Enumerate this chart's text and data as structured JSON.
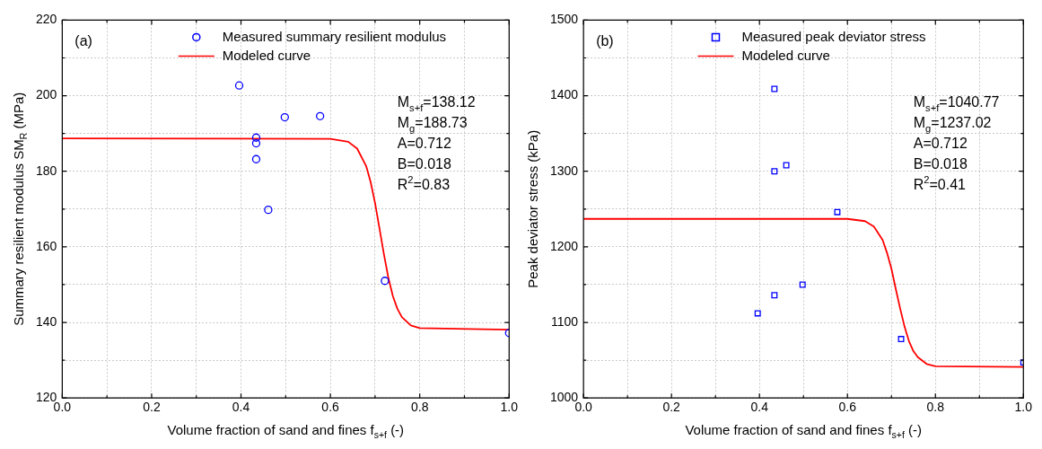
{
  "chart_data": [
    {
      "type": "scatter",
      "xlabel": "Volume fraction of sand and fines f$_{s+f}$ (-)",
      "ylabel": "Summary resilient modulus SM$_{R}$ (MPa)",
      "xlim": [
        0,
        1
      ],
      "ylim": [
        120,
        220
      ],
      "xticks": [
        {
          "value": 0,
          "label": "0.0"
        },
        {
          "value": 0.1,
          "label": null
        },
        0.2,
        {
          "value": 0.3,
          "label": null
        },
        0.4,
        {
          "value": 0.5,
          "label": null
        },
        0.6,
        {
          "value": 0.7,
          "label": null
        },
        0.8,
        {
          "value": 0.9,
          "label": null
        },
        {
          "value": 1,
          "label": "1.0"
        }
      ],
      "yticks": [
        120,
        {
          "value": 130,
          "label": null
        },
        140,
        {
          "value": 150,
          "label": null
        },
        160,
        {
          "value": 170,
          "label": null
        },
        180,
        {
          "value": 190,
          "label": null
        },
        200,
        {
          "value": 210,
          "label": null
        },
        220
      ],
      "grid": true,
      "legend": "top",
      "annotations": [
        "(a)",
        "M$_{s+f}$=138.12",
        "M$_{g}$=188.73",
        "A=0.712",
        "B=0.018",
        "R$^{2}$=0.83"
      ],
      "series": [
        {
          "name": "Measured summary resilient modulus",
          "type": "scatter",
          "marker": "circle",
          "color": "#0000ff",
          "x": [
            0.396,
            0.434,
            0.434,
            0.434,
            0.461,
            0.498,
            0.577,
            0.722,
            1.0
          ],
          "values": [
            202.7,
            188.9,
            187.4,
            183.2,
            169.8,
            194.3,
            194.6,
            151.0,
            137.2
          ]
        },
        {
          "name": "Modeled curve",
          "type": "line",
          "marker": "none",
          "color": "#ff0000",
          "x": [
            0,
            0.6,
            0.64,
            0.66,
            0.68,
            0.69,
            0.7,
            0.71,
            0.72,
            0.73,
            0.74,
            0.75,
            0.76,
            0.78,
            0.8,
            1.0
          ],
          "values": [
            188.7,
            188.6,
            187.8,
            186.0,
            181.4,
            177.2,
            171.6,
            164.8,
            157.9,
            151.7,
            146.9,
            143.6,
            141.4,
            139.2,
            138.5,
            138.1
          ]
        }
      ]
    },
    {
      "type": "scatter",
      "xlabel": "Volume fraction of sand and fines f$_{s+f}$ (-)",
      "ylabel": "Peak deviator stress (kPa)",
      "xlim": [
        0,
        1
      ],
      "ylim": [
        1000,
        1500
      ],
      "xticks": [
        {
          "value": 0,
          "label": "0.0"
        },
        {
          "value": 0.1,
          "label": null
        },
        0.2,
        {
          "value": 0.3,
          "label": null
        },
        0.4,
        {
          "value": 0.5,
          "label": null
        },
        0.6,
        {
          "value": 0.7,
          "label": null
        },
        0.8,
        {
          "value": 0.9,
          "label": null
        },
        {
          "value": 1,
          "label": "1.0"
        }
      ],
      "yticks": [
        1000,
        {
          "value": 1050,
          "label": null
        },
        1100,
        {
          "value": 1150,
          "label": null
        },
        1200,
        {
          "value": 1250,
          "label": null
        },
        1300,
        {
          "value": 1350,
          "label": null
        },
        1400,
        {
          "value": 1450,
          "label": null
        },
        1500
      ],
      "grid": true,
      "legend": "top",
      "annotations": [
        "(b)",
        "M$_{s+f}$=1040.77",
        "M$_{g}$=1237.02",
        "A=0.712",
        "B=0.018",
        "R$^{2}$=0.41"
      ],
      "series": [
        {
          "name": "Measured peak deviator stress",
          "type": "scatter",
          "marker": "square",
          "color": "#0000ff",
          "x": [
            0.396,
            0.434,
            0.434,
            0.434,
            0.461,
            0.498,
            0.577,
            0.722,
            1.0
          ],
          "values": [
            1112,
            1409,
            1300,
            1136,
            1308,
            1150,
            1246,
            1078,
            1047
          ]
        },
        {
          "name": "Modeled curve",
          "type": "line",
          "marker": "none",
          "color": "#ff0000",
          "x": [
            0,
            0.6,
            0.64,
            0.66,
            0.68,
            0.69,
            0.7,
            0.71,
            0.72,
            0.73,
            0.74,
            0.75,
            0.76,
            0.78,
            0.8,
            1.0
          ],
          "values": [
            1237,
            1237,
            1234,
            1227,
            1209,
            1192,
            1171,
            1144,
            1118,
            1094,
            1075,
            1062,
            1054,
            1045,
            1042,
            1041
          ]
        }
      ]
    }
  ]
}
